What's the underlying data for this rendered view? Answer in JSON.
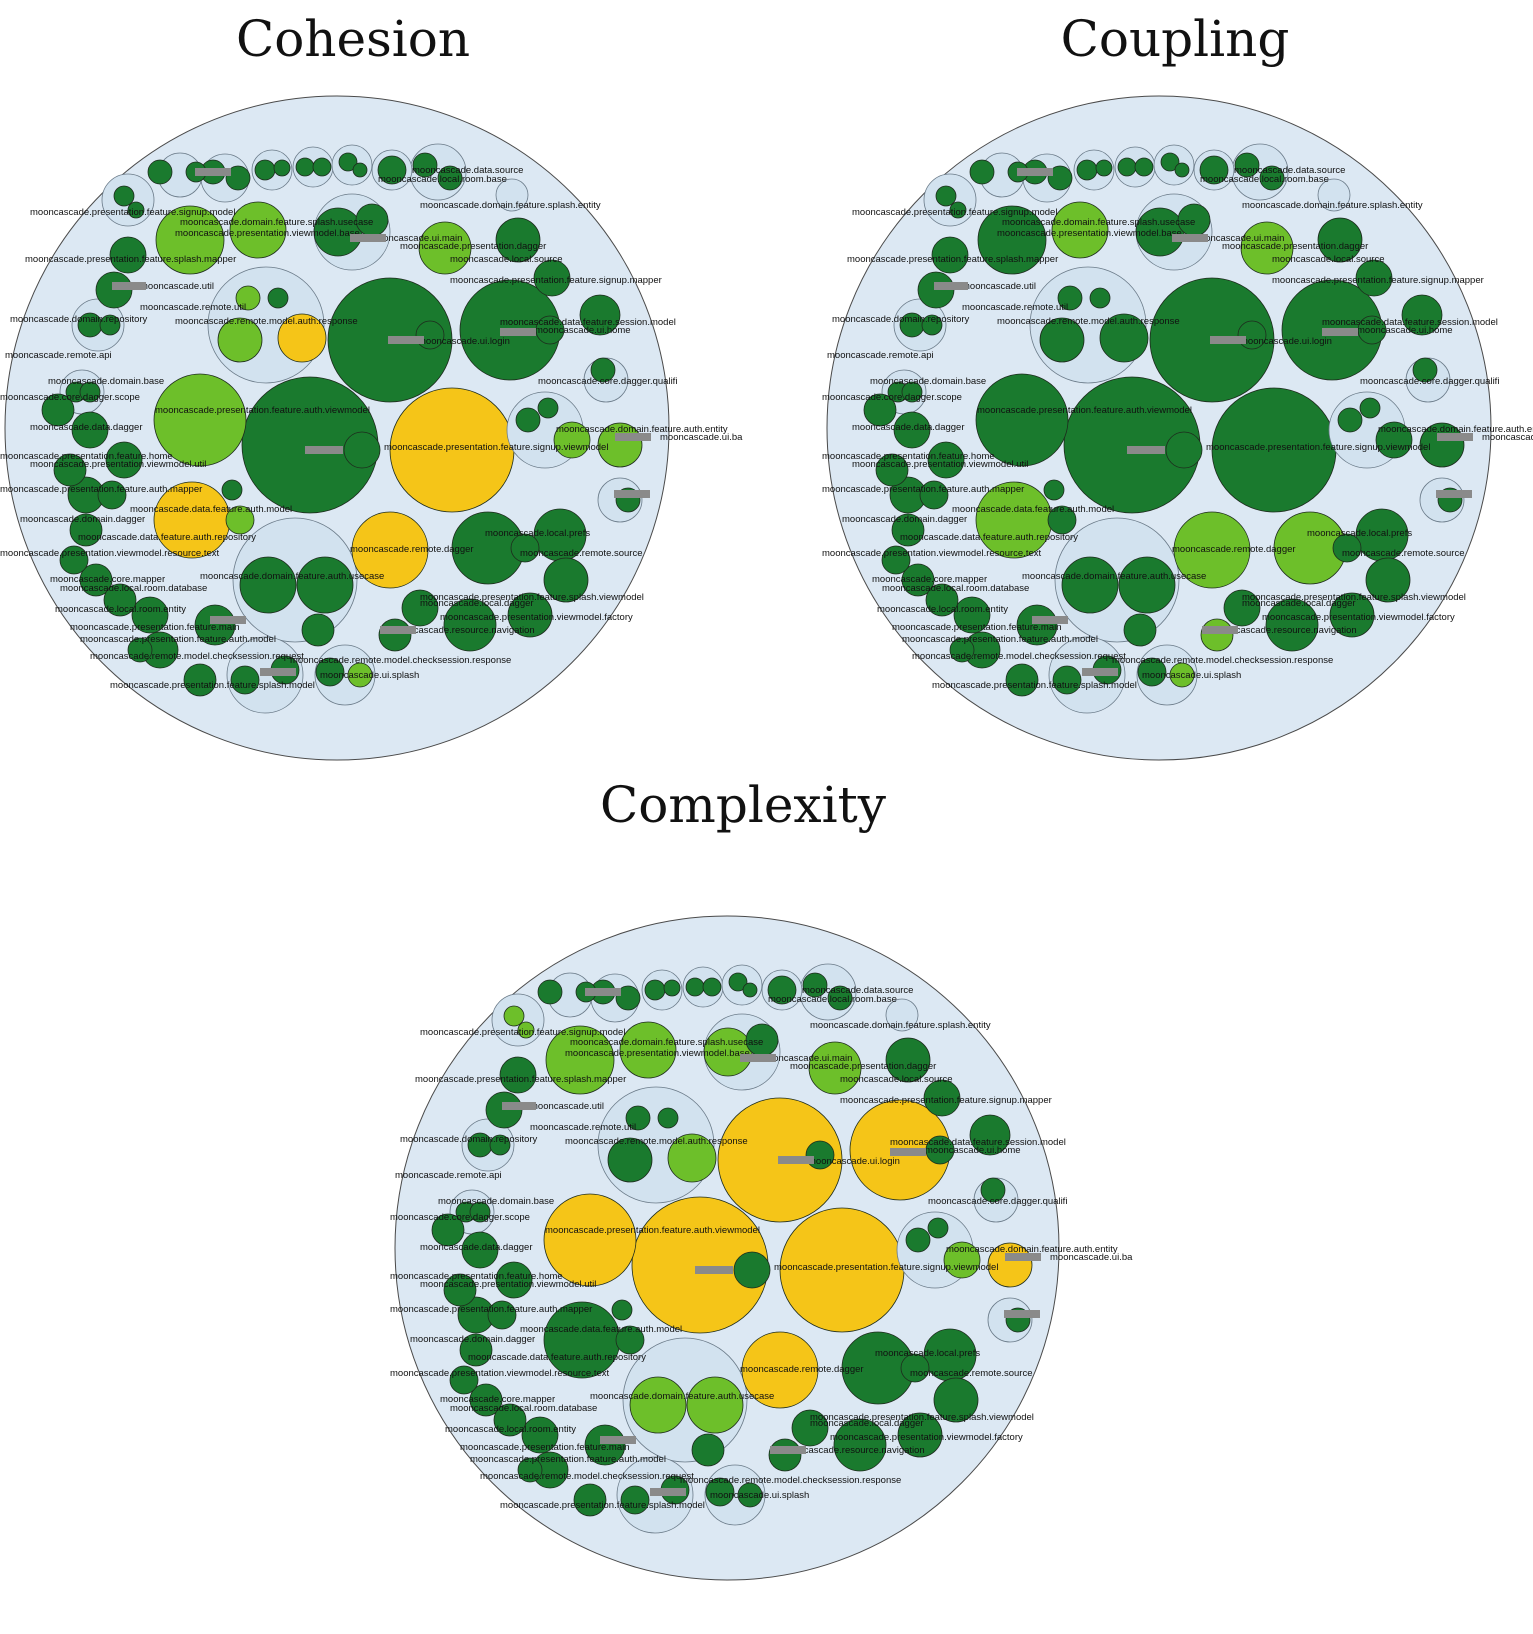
{
  "panels": [
    {
      "id": "cohesion",
      "title": "Cohesion"
    },
    {
      "id": "coupling",
      "title": "Coupling"
    },
    {
      "id": "complexity",
      "title": "Complexity"
    }
  ],
  "colors": {
    "background_bubble": "#dce8f3",
    "inner_bubble": "#d2e2ef",
    "outline": "#4a4a4a",
    "dark_green": "#1a7a2e",
    "light_green": "#6dbf2a",
    "yellow": "#f5c518",
    "redaction": "#8a8a8a"
  },
  "labels": [
    "mooncascade.presentation.feature.signup.model",
    "mooncascade.domain.feature.splash.usecase",
    "mooncascade.presentation.viewmodel.base",
    "mooncascade.presentation.feature.splash.mapper",
    "mooncascade.domain.feature.splash.entity",
    "mooncascade.presentation.dagger",
    "mooncascade.local.source",
    "mooncascade.presentation.feature.signup.mapper",
    "mooncascade.remote.util",
    "mooncascade.domain.repository",
    "mooncascade.remote.model.auth.response",
    "mooncascade.data.feature.session.model",
    "mooncascade.remote.api",
    "mooncascade.domain.base",
    "mooncascade.core.dagger.qualifi",
    "mooncascade.core.dagger.scope",
    "mooncascade.presentation.feature.auth.viewmodel",
    "mooncascade.domain.feature.auth.entity",
    "mooncascade.data.dagger",
    "mooncascade.presentation.feature.home",
    "mooncascade.presentation.feature.signup.viewmodel",
    "mooncascade.presentation.viewmodel.util",
    "mooncascade.presentation.feature.auth.mapper",
    "mooncascade.data.feature.auth.model",
    "mooncascade.domain.dagger",
    "mooncascade.data.feature.auth.repository",
    "mooncascade.remote.dagger",
    "mooncascade.local.prefs",
    "mooncascade.presentation.viewmodel.resource.text",
    "mooncascade.remote.source",
    "mooncascade.core.mapper",
    "mooncascade.domain.feature.auth.usecase",
    "mooncascade.local.room.database",
    "mooncascade.local.dagger",
    "mooncascade.presentation.feature.splash.viewmodel",
    "mooncascade.local.room.entity",
    "mooncascade.presentation.viewmodel.factory",
    "mooncascade.presentation.feature.main",
    "mooncascade.resource.navigation",
    "mooncascade.presentation.feature.auth.model",
    "mooncascade.remote.model.checksession.request",
    "mooncascade.remote.model.checksession.response",
    "mooncascade.presentation.feature.splash.model",
    "mooncascade.data.source",
    "mooncascade.local.room.base",
    "mooncascade.ui.splash",
    "mooncascade.ui.main",
    "mooncascade.ui.login",
    "mooncascade.ui.home",
    "mooncascade.ui.ba",
    "mooncascade.util"
  ]
}
